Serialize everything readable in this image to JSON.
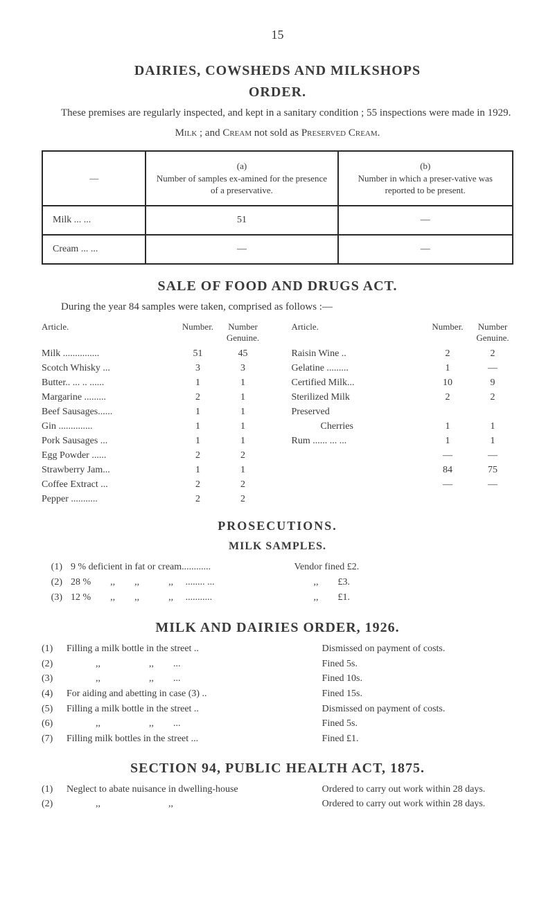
{
  "page_number": "15",
  "section1": {
    "title_line1": "DAIRIES, COWSHEDS AND MILKSHOPS",
    "title_line2": "ORDER.",
    "para": "These premises are regularly inspected, and kept in a sanitary condition ; 55 inspections were made in 1929.",
    "table_caption_prefix": "Milk",
    "table_caption_mid": " ; and ",
    "table_caption_cream": "Cream",
    "table_caption_rest": " not sold as ",
    "table_caption_pres": "Preserved Cream.",
    "col_a_head": "(a)\nNumber of samples ex-amined for the presence of a preservative.",
    "col_b_head": "(b)\nNumber in which a preser-vative was reported to be present.",
    "rows": [
      {
        "label": "Milk  ...   ...",
        "a": "51",
        "b": "—"
      },
      {
        "label": "Cream ...   ...",
        "a": "—",
        "b": "—"
      }
    ]
  },
  "section2": {
    "title": "SALE OF FOOD AND DRUGS ACT.",
    "para": "During the year 84 samples were taken, comprised as follows :—",
    "col_heads": {
      "article": "Article.",
      "number": "Number.",
      "genuine": "Number\nGenuine."
    },
    "left": [
      {
        "label": "Milk ...............",
        "n": "51",
        "g": "45"
      },
      {
        "label": "Scotch Whisky ...",
        "n": "3",
        "g": "3"
      },
      {
        "label": "Butter.. ... .. ......",
        "n": "1",
        "g": "1"
      },
      {
        "label": "Margarine .........",
        "n": "2",
        "g": "1"
      },
      {
        "label": "Beef Sausages......",
        "n": "1",
        "g": "1"
      },
      {
        "label": "Gin ..............",
        "n": "1",
        "g": "1"
      },
      {
        "label": "Pork Sausages ...",
        "n": "1",
        "g": "1"
      },
      {
        "label": "Egg Powder ......",
        "n": "2",
        "g": "2"
      },
      {
        "label": "Strawberry Jam...",
        "n": "1",
        "g": "1"
      },
      {
        "label": "Coffee Extract ...",
        "n": "2",
        "g": "2"
      },
      {
        "label": "Pepper ...........",
        "n": "2",
        "g": "2"
      }
    ],
    "right": [
      {
        "label": "Raisin Wine ..",
        "n": "2",
        "g": "2"
      },
      {
        "label": "Gelatine .........",
        "n": "1",
        "g": "—"
      },
      {
        "label": "Certified Milk...",
        "n": "10",
        "g": "9"
      },
      {
        "label": "Sterilized Milk",
        "n": "2",
        "g": "2"
      },
      {
        "label": "Preserved",
        "n": "",
        "g": ""
      },
      {
        "label": "   Cherries",
        "n": "1",
        "g": "1"
      },
      {
        "label": "Rum ...... ... ...",
        "n": "1",
        "g": "1"
      },
      {
        "label": "",
        "n": "—",
        "g": "—"
      },
      {
        "label": "",
        "n": "84",
        "g": "75"
      },
      {
        "label": "",
        "n": "—",
        "g": "—"
      }
    ]
  },
  "section3": {
    "title": "PROSECUTIONS.",
    "subtitle": "MILK SAMPLES.",
    "items": [
      {
        "idx": "(1)",
        "left": " 9 % deficient in fat or cream............",
        "right": "Vendor fined £2."
      },
      {
        "idx": "(2)",
        "left": "28 %  ,,  ,,   ,,  ........ ...",
        "right": "  ,,  £3."
      },
      {
        "idx": "(3)",
        "left": "12 %  ,,  ,,   ,,  ...........",
        "right": "  ,,  £1."
      }
    ]
  },
  "section4": {
    "title": "MILK AND DAIRIES ORDER, 1926.",
    "items": [
      {
        "idx": "(1)",
        "left": "Filling a milk bottle in the street ..",
        "right": "Dismissed on payment of costs."
      },
      {
        "idx": "(2)",
        "left": "   ,,     ,,  ...",
        "right": "Fined 5s."
      },
      {
        "idx": "(3)",
        "left": "   ,,     ,,  ...",
        "right": "Fined 10s."
      },
      {
        "idx": "(4)",
        "left": "For aiding and abetting in case (3) ..",
        "right": "Fined 15s."
      },
      {
        "idx": "(5)",
        "left": "Filling a milk bottle in the street ..",
        "right": "Dismissed on payment of costs."
      },
      {
        "idx": "(6)",
        "left": "   ,,     ,,  ...",
        "right": "Fined 5s."
      },
      {
        "idx": "(7)",
        "left": "Filling milk bottles in the street ...",
        "right": "Fined £1."
      }
    ]
  },
  "section5": {
    "title": "SECTION 94, PUBLIC HEALTH ACT, 1875.",
    "items": [
      {
        "idx": "(1)",
        "left": "Neglect to abate nuisance in dwelling-house",
        "right": "Ordered to carry out work within 28 days."
      },
      {
        "idx": "(2)",
        "left": "   ,,       ,,",
        "right": "Ordered to carry out work within 28 days."
      }
    ]
  }
}
